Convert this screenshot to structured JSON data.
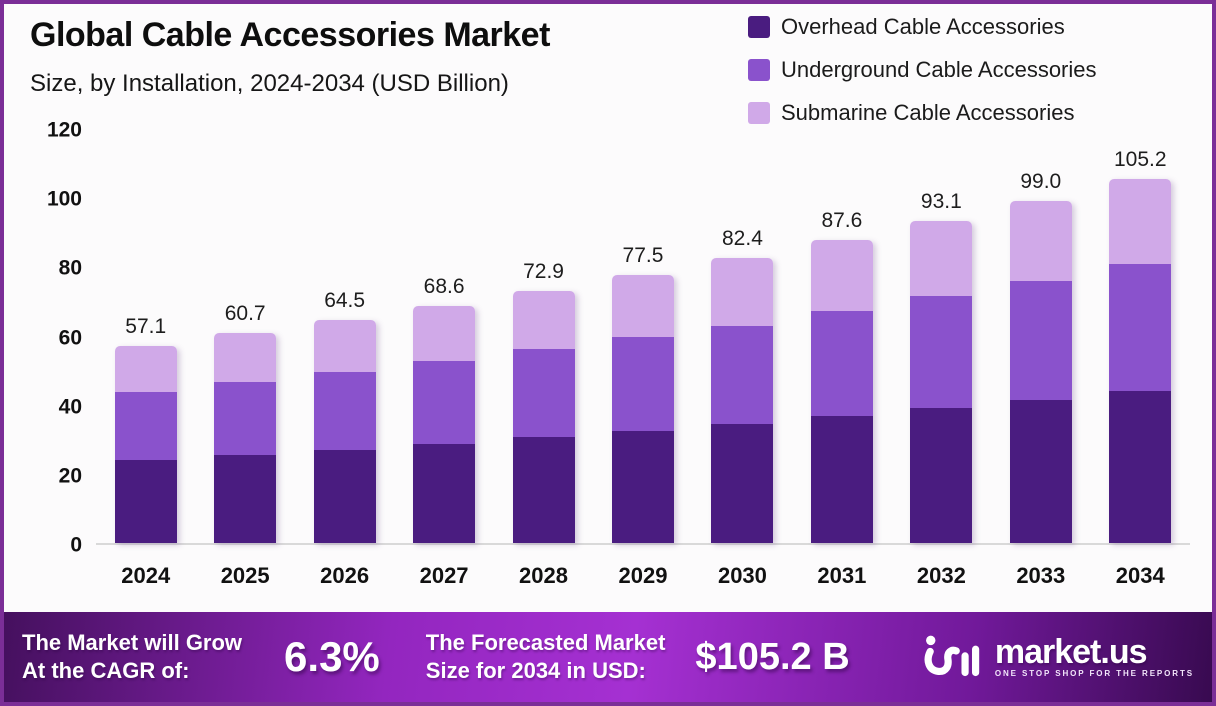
{
  "header": {
    "title": "Global Cable Accessories Market",
    "subtitle": "Size, by Installation, 2024-2034 (USD Billion)"
  },
  "chart_data": {
    "type": "bar",
    "stacked": true,
    "title": "Global Cable Accessories Market",
    "subtitle": "Size, by Installation, 2024-2034 (USD Billion)",
    "categories": [
      "2024",
      "2025",
      "2026",
      "2027",
      "2028",
      "2029",
      "2030",
      "2031",
      "2032",
      "2033",
      "2034"
    ],
    "series": [
      {
        "name": "Overhead Cable Accessories",
        "color": "#4a1c80",
        "values": [
          23.9,
          25.4,
          26.9,
          28.6,
          30.6,
          32.3,
          34.5,
          36.6,
          39.0,
          41.4,
          43.9
        ]
      },
      {
        "name": "Underground Cable Accessories",
        "color": "#8a52cc",
        "values": [
          19.9,
          21.3,
          22.5,
          24.0,
          25.6,
          27.4,
          28.3,
          30.6,
          32.5,
          34.5,
          36.8
        ]
      },
      {
        "name": "Submarine Cable Accessories",
        "color": "#d0a9e8",
        "values": [
          13.3,
          14.0,
          15.1,
          16.0,
          16.7,
          17.8,
          19.6,
          20.4,
          21.6,
          23.1,
          24.5
        ]
      }
    ],
    "totals": [
      57.1,
      60.7,
      64.5,
      68.6,
      72.9,
      77.5,
      82.4,
      87.6,
      93.1,
      99.0,
      105.2
    ],
    "ylim": [
      0,
      120
    ],
    "yticks": [
      0,
      20,
      40,
      60,
      80,
      100,
      120
    ],
    "grid": false,
    "legend_position": "top-right",
    "value_label_decimals": 1
  },
  "footer": {
    "cagr_label_line1": "The Market will Grow",
    "cagr_label_line2": "At the CAGR of:",
    "cagr_value": "6.3%",
    "forecast_label_line1": "The Forecasted Market",
    "forecast_label_line2": "Size for 2034 in USD:",
    "forecast_value": "$105.2 B",
    "brand_name": "market.us",
    "brand_tagline": "ONE STOP SHOP FOR THE REPORTS"
  },
  "colors": {
    "frame_border": "#7b2e97",
    "background": "#fcfbfc",
    "axis_line": "#d9d9d9",
    "text_dark": "#111111",
    "text_white": "#ffffff",
    "footer_gradient": [
      "#45105e",
      "#9326bf",
      "#a530d2",
      "#71199a",
      "#380a50"
    ]
  }
}
